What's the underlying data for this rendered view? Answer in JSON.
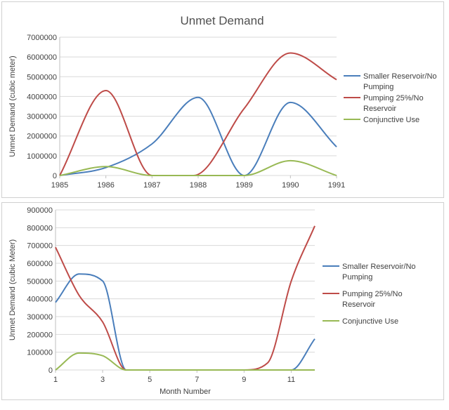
{
  "chart_data": [
    {
      "type": "line",
      "title": "Unmet Demand",
      "ylabel": "Unmet Demand (cubic meter)",
      "xlabel": "",
      "ylim": [
        0,
        7000000
      ],
      "yticks": [
        "0",
        "1000000",
        "2000000",
        "3000000",
        "4000000",
        "5000000",
        "6000000",
        "7000000"
      ],
      "xlim": [
        1985,
        1991
      ],
      "xticks": [
        "1985",
        "1986",
        "1987",
        "1988",
        "1989",
        "1990",
        "1991"
      ],
      "grid": "horizontal",
      "legend": "right",
      "series": [
        {
          "name": "Smaller Reservoir/No Pumping",
          "color": "#4a7ebb",
          "x": [
            1985,
            1986,
            1987,
            1988,
            1989,
            1990,
            1991
          ],
          "y": [
            0,
            400000,
            1600000,
            3950000,
            0,
            3700000,
            1450000
          ]
        },
        {
          "name": "Pumping 25%/No Reservoir",
          "color": "#be4b48",
          "x": [
            1985,
            1986,
            1987,
            1987.9,
            1989,
            1990,
            1991
          ],
          "y": [
            0,
            4300000,
            0,
            0,
            3400000,
            6200000,
            4850000
          ]
        },
        {
          "name": "Conjunctive Use",
          "color": "#98b954",
          "x": [
            1985,
            1986,
            1987,
            1988,
            1989,
            1990,
            1991
          ],
          "y": [
            0,
            450000,
            0,
            0,
            0,
            750000,
            0
          ]
        }
      ]
    },
    {
      "type": "line",
      "title": "",
      "ylabel": "Unmet Demand (cubic Meter)",
      "xlabel": "Month Number",
      "ylim": [
        0,
        900000
      ],
      "yticks": [
        "0",
        "100000",
        "200000",
        "300000",
        "400000",
        "500000",
        "600000",
        "700000",
        "800000",
        "900000"
      ],
      "xlim": [
        1,
        12
      ],
      "xticks": [
        "1",
        "3",
        "5",
        "7",
        "9",
        "11"
      ],
      "grid": "horizontal",
      "legend": "right",
      "series": [
        {
          "name": "Smaller Reservoir/No Pumping",
          "color": "#4a7ebb",
          "x": [
            1,
            2,
            3,
            4,
            5,
            6,
            7,
            8,
            9,
            10,
            11,
            12
          ],
          "y": [
            380000,
            540000,
            500000,
            0,
            0,
            0,
            0,
            0,
            0,
            0,
            0,
            175000
          ]
        },
        {
          "name": "Pumping 25%/No Reservoir",
          "color": "#be4b48",
          "x": [
            1,
            2,
            3,
            4,
            5,
            6,
            7,
            8,
            9,
            10,
            11,
            12
          ],
          "y": [
            690000,
            420000,
            270000,
            0,
            0,
            0,
            0,
            0,
            0,
            40000,
            500000,
            810000
          ]
        },
        {
          "name": "Conjunctive Use",
          "color": "#98b954",
          "x": [
            1,
            2,
            3,
            4,
            5,
            6,
            7,
            8,
            9,
            10,
            11,
            12
          ],
          "y": [
            0,
            95000,
            80000,
            0,
            0,
            0,
            0,
            0,
            0,
            0,
            0,
            0
          ]
        }
      ]
    }
  ]
}
